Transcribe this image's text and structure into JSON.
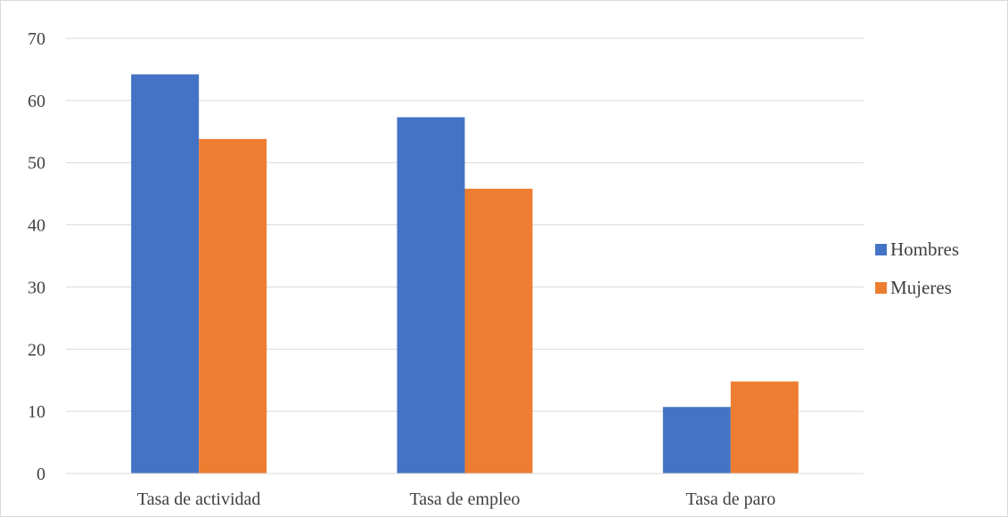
{
  "chart_data": {
    "type": "bar",
    "title": "",
    "xlabel": "",
    "ylabel": "",
    "categories": [
      "Tasa de actividad",
      "Tasa de empleo",
      "Tasa de paro"
    ],
    "series": [
      {
        "name": "Hombres",
        "color": "#4472c4",
        "values": [
          64.2,
          57.3,
          10.7
        ]
      },
      {
        "name": "Mujeres",
        "color": "#ed7d31",
        "values": [
          53.8,
          45.8,
          14.8
        ]
      }
    ],
    "ylim": [
      0,
      70
    ],
    "yticks": [
      0,
      10,
      20,
      30,
      40,
      50,
      60,
      70
    ],
    "grid": true,
    "legend": "right"
  }
}
